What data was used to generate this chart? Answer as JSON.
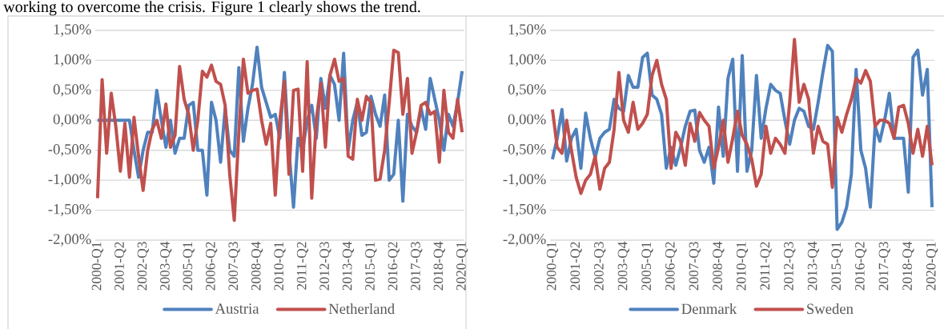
{
  "chart_data": [
    {
      "type": "line",
      "annotations": [
        "working to overcome the crisis. Figure 1 clearly shows the trend."
      ],
      "categories": [
        "2000-Q1",
        null,
        null,
        null,
        null,
        "2001-Q2",
        null,
        null,
        null,
        null,
        "2002-Q3",
        null,
        null,
        null,
        null,
        "2003-Q4",
        null,
        null,
        null,
        null,
        "2005-Q1",
        null,
        null,
        null,
        null,
        "2006-Q2",
        null,
        null,
        null,
        null,
        "2007-Q3",
        null,
        null,
        null,
        null,
        "2008-Q4",
        null,
        null,
        null,
        null,
        "2010-Q1",
        null,
        null,
        null,
        null,
        "2011-Q2",
        null,
        null,
        null,
        null,
        "2012-Q3",
        null,
        null,
        null,
        null,
        "2013-Q4",
        null,
        null,
        null,
        null,
        "2015-Q1",
        null,
        null,
        null,
        null,
        "2016-Q2",
        null,
        null,
        null,
        null,
        "2017-Q3",
        null,
        null,
        null,
        null,
        "2018-Q4",
        null,
        null,
        null,
        null,
        "2020-Q1"
      ],
      "series": [
        {
          "name": "Austria",
          "color": "#4f81bd",
          "values": [
            0,
            0,
            0,
            0,
            0,
            0,
            0,
            0,
            -0.5,
            -0.95,
            -0.5,
            -0.2,
            -0.2,
            0.5,
            0.0,
            -0.45,
            0.0,
            -0.55,
            -0.3,
            -0.3,
            0.25,
            0.3,
            -0.5,
            -0.5,
            -1.25,
            0.3,
            0.0,
            -0.7,
            0.2,
            -0.5,
            -0.6,
            0.88,
            -0.35,
            0.2,
            0.6,
            1.22,
            0.55,
            0.3,
            0.05,
            0.1,
            -0.3,
            0.8,
            -0.5,
            -1.45,
            -0.3,
            -0.5,
            0.0,
            0.25,
            -0.3,
            0.7,
            0.2,
            0.75,
            0.6,
            0.0,
            1.12,
            -0.5,
            0.0,
            0.3,
            -0.25,
            -0.2,
            0.4,
            0.1,
            -0.1,
            0.42,
            -1.0,
            -0.9,
            0.0,
            -1.35,
            0.1,
            -0.1,
            -0.2,
            0.2,
            -0.15,
            0.7,
            0.35,
            0.0,
            -0.5,
            0.1,
            -0.1,
            0.3,
            0.82
          ]
        },
        {
          "name": "Netherland",
          "color": "#c0504d",
          "values": [
            -1.3,
            0.68,
            -0.55,
            0.45,
            -0.1,
            -0.85,
            -0.05,
            -0.95,
            0.05,
            -0.6,
            -1.17,
            -0.5,
            -0.15,
            0.0,
            -0.3,
            0.27,
            -0.45,
            -0.25,
            0.9,
            0.35,
            0.1,
            -0.5,
            0.0,
            0.82,
            0.72,
            0.92,
            0.65,
            0.6,
            0.25,
            -0.9,
            -1.67,
            -0.2,
            1.02,
            0.45,
            0.5,
            0.52,
            0.0,
            -0.4,
            -0.05,
            -1.25,
            0.0,
            0.65,
            -0.9,
            0.5,
            0.52,
            -0.85,
            0.98,
            -1.3,
            0.0,
            0.62,
            -0.45,
            0.75,
            1.02,
            0.65,
            0.7,
            -0.6,
            -0.65,
            0.35,
            0.0,
            0.4,
            0.3,
            -1.0,
            -0.98,
            -0.5,
            0.3,
            1.17,
            1.13,
            0.1,
            0.7,
            -0.55,
            -0.2,
            0.25,
            0.3,
            0.1,
            0.15,
            -0.7,
            0.5,
            -0.2,
            -0.3,
            0.35,
            -0.2
          ]
        }
      ],
      "ylim": [
        -2,
        1.5
      ],
      "yticks": [
        {
          "value": -2,
          "label": "-2,00%"
        },
        {
          "value": -1.5,
          "label": "-1,50%"
        },
        {
          "value": -1,
          "label": "-1,00%"
        },
        {
          "value": -0.5,
          "label": "-0,50%"
        },
        {
          "value": 0,
          "label": "0,00%"
        },
        {
          "value": 0.5,
          "label": "0,50%"
        },
        {
          "value": 1,
          "label": "1,00%"
        },
        {
          "value": 1.5,
          "label": "1,50%"
        }
      ],
      "grid": "y",
      "legend": "bottom"
    },
    {
      "type": "line",
      "categories": [
        "2000-Q1",
        null,
        null,
        null,
        null,
        "2001-Q2",
        null,
        null,
        null,
        null,
        "2002-Q3",
        null,
        null,
        null,
        null,
        "2003-Q4",
        null,
        null,
        null,
        null,
        "2005-Q1",
        null,
        null,
        null,
        null,
        "2006-Q2",
        null,
        null,
        null,
        null,
        "2007-Q3",
        null,
        null,
        null,
        null,
        "2008-Q4",
        null,
        null,
        null,
        null,
        "2010-Q1",
        null,
        null,
        null,
        null,
        "2011-Q2",
        null,
        null,
        null,
        null,
        "2012-Q3",
        null,
        null,
        null,
        null,
        "2013-Q4",
        null,
        null,
        null,
        null,
        "2015-Q1",
        null,
        null,
        null,
        null,
        "2016-Q2",
        null,
        null,
        null,
        null,
        "2017-Q3",
        null,
        null,
        null,
        null,
        "2018-Q4",
        null,
        null,
        null,
        null,
        "2020-Q1"
      ],
      "series": [
        {
          "name": "Denmark",
          "color": "#4f81bd",
          "values": [
            -0.65,
            -0.3,
            0.18,
            -0.68,
            -0.3,
            -0.15,
            -0.8,
            0.12,
            -0.3,
            -0.62,
            -0.3,
            -0.2,
            -0.15,
            0.35,
            0.2,
            0.15,
            0.75,
            0.55,
            0.55,
            1.05,
            1.12,
            0.42,
            0.35,
            0.1,
            -0.8,
            -0.45,
            -0.75,
            -0.45,
            -0.1,
            0.15,
            0.17,
            -0.5,
            -0.7,
            -0.45,
            -1.05,
            0.22,
            -0.6,
            0.7,
            1.02,
            -0.85,
            1.08,
            -0.85,
            -0.5,
            0.75,
            -0.3,
            0.2,
            0.6,
            0.5,
            0.45,
            0.0,
            -0.4,
            0.0,
            0.2,
            0.15,
            -0.1,
            -0.15,
            0.3,
            0.8,
            1.25,
            1.15,
            -1.82,
            -1.7,
            -1.45,
            -0.9,
            0.85,
            -0.5,
            -0.8,
            -1.45,
            -0.1,
            -0.35,
            0.0,
            0.45,
            -0.3,
            -0.3,
            -0.3,
            -1.2,
            1.05,
            1.17,
            0.42,
            0.85,
            -1.45
          ]
        },
        {
          "name": "Sweden",
          "color": "#c0504d",
          "values": [
            0.18,
            -0.45,
            -0.55,
            0.0,
            -0.5,
            -0.95,
            -1.22,
            -1.0,
            -0.9,
            -0.6,
            -1.15,
            -0.8,
            -0.7,
            -0.15,
            0.8,
            0.0,
            -0.2,
            0.3,
            -0.15,
            -0.05,
            0.1,
            0.75,
            1.0,
            0.6,
            0.35,
            -0.8,
            -0.2,
            -0.35,
            -0.75,
            -0.05,
            -0.35,
            0.13,
            0.0,
            -0.1,
            -0.8,
            -0.45,
            0.0,
            -0.7,
            -0.3,
            0.15,
            -0.25,
            -0.4,
            -0.65,
            -1.1,
            -0.9,
            -0.1,
            -0.55,
            -0.3,
            -0.4,
            -0.55,
            0.3,
            1.35,
            0.3,
            0.6,
            0.35,
            -0.55,
            -0.1,
            -0.35,
            -0.4,
            -1.12,
            0.05,
            -0.2,
            0.1,
            0.35,
            0.7,
            0.62,
            0.83,
            0.65,
            -0.1,
            0.0,
            0.0,
            -0.05,
            -0.3,
            0.22,
            0.25,
            -0.05,
            -0.55,
            -0.15,
            -0.6,
            -0.1,
            -0.75
          ]
        }
      ],
      "ylim": [
        -2,
        1.5
      ],
      "yticks": [
        {
          "value": -2,
          "label": "-2,00%"
        },
        {
          "value": -1.5,
          "label": "-1,50%"
        },
        {
          "value": -1,
          "label": "-1,00%"
        },
        {
          "value": -0.5,
          "label": "-0,50%"
        },
        {
          "value": 0,
          "label": "0,00%"
        },
        {
          "value": 0.5,
          "label": "0,50%"
        },
        {
          "value": 1,
          "label": "1,00%"
        },
        {
          "value": 1.5,
          "label": "1,50%"
        }
      ],
      "grid": "y",
      "legend": "bottom"
    }
  ]
}
